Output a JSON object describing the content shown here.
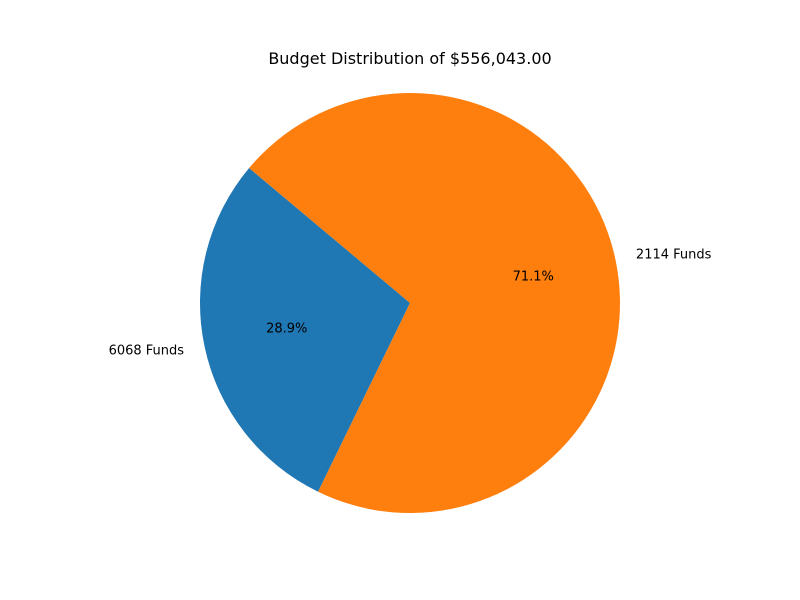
{
  "chart_data": {
    "type": "pie",
    "title": "Budget Distribution of $556,043.00",
    "slices": [
      {
        "label": "6068 Funds",
        "value": 28.9,
        "pct_label": "28.9%",
        "color": "#1f77b4"
      },
      {
        "label": "2114 Funds",
        "value": 71.1,
        "pct_label": "71.1%",
        "color": "#ff7f0e"
      }
    ],
    "start_angle_deg": 140,
    "direction": "counterclockwise"
  }
}
